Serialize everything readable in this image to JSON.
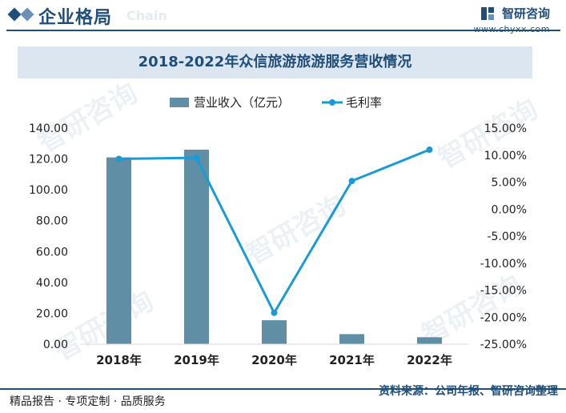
{
  "header": {
    "title": "企业格局",
    "watermark_word": "Chain",
    "logo_name": "智研咨询",
    "logo_url": "www.chyxx.com"
  },
  "chart_data": {
    "type": "bar",
    "title": "2018-2022年众信旅游旅游服务营收情况",
    "categories": [
      "2018年",
      "2019年",
      "2020年",
      "2021年",
      "2022年"
    ],
    "series": [
      {
        "name": "营业收入（亿元）",
        "type": "bar",
        "axis": "left",
        "values": [
          121.0,
          126.0,
          15.5,
          6.5,
          4.5
        ],
        "color": "#5f8ea5"
      },
      {
        "name": "毛利率",
        "type": "line",
        "axis": "right",
        "values": [
          9.3,
          9.5,
          -19.2,
          5.2,
          11.0
        ],
        "color": "#1a9bd7"
      }
    ],
    "y_left": {
      "min": 0,
      "max": 140,
      "step": 20,
      "tick_labels": [
        "0.00",
        "20.00",
        "40.00",
        "60.00",
        "80.00",
        "100.00",
        "120.00",
        "140.00"
      ]
    },
    "y_right": {
      "min": -25,
      "max": 15,
      "step": 5,
      "tick_labels": [
        "-25.00%",
        "-20.00%",
        "-15.00%",
        "-10.00%",
        "-5.00%",
        "0.00%",
        "5.00%",
        "10.00%",
        "15.00%"
      ]
    },
    "legend_position": "top-center",
    "grid": false
  },
  "footer": {
    "left_text": "精品报告 · 专项定制 · 品质服务",
    "source_text": "资料来源：公司年报、智研咨询整理"
  },
  "colors": {
    "brand": "#1f4e79",
    "bar": "#5f8ea5",
    "line": "#1a9bd7",
    "title_band": "#dbe6f1"
  }
}
